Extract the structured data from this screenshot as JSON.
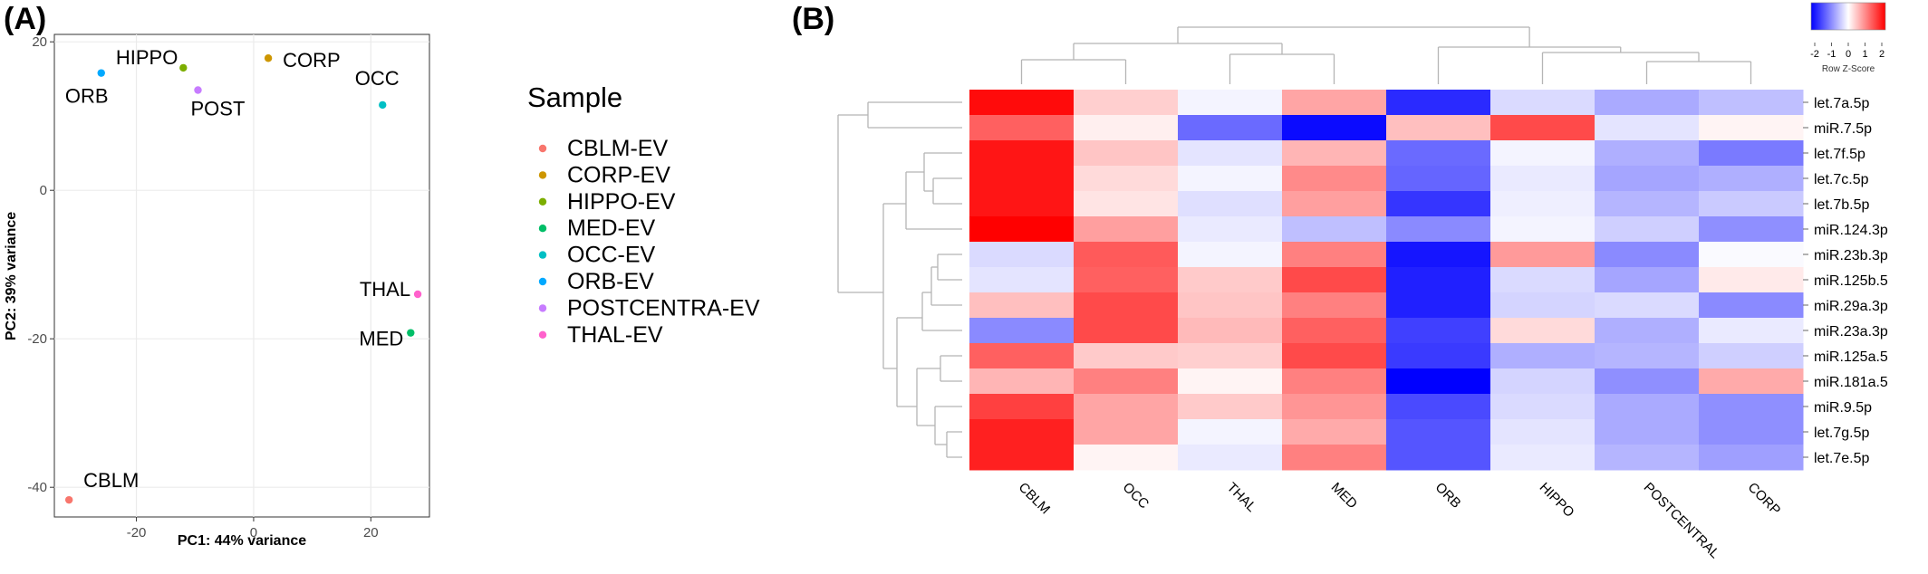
{
  "panels": {
    "a_label": "(A)",
    "b_label": "(B)"
  },
  "chart_data": [
    {
      "type": "scatter",
      "xlabel": "PC1: 44% variance",
      "ylabel": "PC2: 39% variance",
      "xlim": [
        -34,
        30
      ],
      "ylim": [
        -44,
        21
      ],
      "xticks": [
        -20,
        0,
        20
      ],
      "yticks": [
        -40,
        -20,
        0,
        20
      ],
      "grid": true,
      "legend": {
        "title": "Sample",
        "position": "right"
      },
      "points": [
        {
          "label": "CBLM",
          "sample": "CBLM-EV",
          "x": -31.5,
          "y": -41.7,
          "color": "#F8766D"
        },
        {
          "label": "CORP",
          "sample": "CORP-EV",
          "x": 2.5,
          "y": 17.8,
          "color": "#CD9600"
        },
        {
          "label": "HIPPO",
          "sample": "HIPPO-EV",
          "x": -12,
          "y": 16.5,
          "color": "#7CAE00"
        },
        {
          "label": "MED",
          "sample": "MED-EV",
          "x": 26.8,
          "y": -19.2,
          "color": "#00BE67"
        },
        {
          "label": "OCC",
          "sample": "OCC-EV",
          "x": 22,
          "y": 11.5,
          "color": "#00BFC4"
        },
        {
          "label": "ORB",
          "sample": "ORB-EV",
          "x": -26,
          "y": 15.8,
          "color": "#00A9FF"
        },
        {
          "label": "POST",
          "sample": "POSTCENTRA-EV",
          "x": -9.5,
          "y": 13.5,
          "color": "#C77CFF"
        },
        {
          "label": "THAL",
          "sample": "THAL-EV",
          "x": 28,
          "y": -14,
          "color": "#FF61CC"
        }
      ]
    },
    {
      "type": "heatmap",
      "columns": [
        "CBLM",
        "OCC",
        "THAL",
        "MED",
        "ORB",
        "HIPPO",
        "POSTCENTRAL",
        "CORP"
      ],
      "rows": [
        "let.7a.5p",
        "miR.7.5p",
        "let.7f.5p",
        "let.7c.5p",
        "let.7b.5p",
        "miR.124.3p",
        "miR.23b.3p",
        "miR.125b.5",
        "miR.29a.3p",
        "miR.23a.3p",
        "miR.125a.5",
        "miR.181a.5",
        "miR.9.5p",
        "let.7g.5p",
        "let.7e.5p"
      ],
      "values": [
        [
          2.3,
          0.45,
          -0.1,
          0.85,
          -2.0,
          -0.35,
          -0.8,
          -0.6
        ],
        [
          1.5,
          0.15,
          -1.4,
          -2.3,
          0.6,
          1.7,
          -0.25,
          0.1
        ],
        [
          2.2,
          0.55,
          -0.25,
          0.7,
          -1.4,
          -0.1,
          -0.75,
          -1.25
        ],
        [
          2.2,
          0.35,
          -0.1,
          1.1,
          -1.45,
          -0.2,
          -0.85,
          -0.75
        ],
        [
          2.2,
          0.25,
          -0.3,
          0.9,
          -1.9,
          -0.15,
          -0.7,
          -0.5
        ],
        [
          2.4,
          0.9,
          -0.2,
          -0.6,
          -1.1,
          -0.1,
          -0.45,
          -1.05
        ],
        [
          -0.35,
          1.55,
          -0.1,
          1.2,
          -2.2,
          0.95,
          -1.1,
          -0.05
        ],
        [
          -0.25,
          1.5,
          0.5,
          1.7,
          -2.1,
          -0.35,
          -0.85,
          0.2
        ],
        [
          0.6,
          1.7,
          0.55,
          1.2,
          -2.1,
          -0.4,
          -0.35,
          -1.1
        ],
        [
          -1.1,
          1.7,
          0.65,
          1.5,
          -1.8,
          0.35,
          -0.75,
          -0.2
        ],
        [
          1.5,
          0.5,
          0.45,
          1.7,
          -1.85,
          -0.75,
          -0.7,
          -0.45
        ],
        [
          0.7,
          1.2,
          0.1,
          1.2,
          -2.4,
          -0.4,
          -1.05,
          0.8
        ],
        [
          1.8,
          0.85,
          0.5,
          1.0,
          -1.7,
          -0.35,
          -0.8,
          -1.05
        ],
        [
          2.1,
          0.85,
          -0.1,
          0.8,
          -1.6,
          -0.25,
          -0.8,
          -1.05
        ],
        [
          2.1,
          0.1,
          -0.2,
          1.2,
          -1.6,
          -0.2,
          -0.7,
          -0.9
        ]
      ],
      "color_key": {
        "title": "Row Z-Score",
        "ticks": [
          -2,
          -1,
          0,
          1,
          2
        ],
        "low": "#0000FF",
        "mid": "#FFFFFF",
        "high": "#FF0000"
      }
    }
  ]
}
